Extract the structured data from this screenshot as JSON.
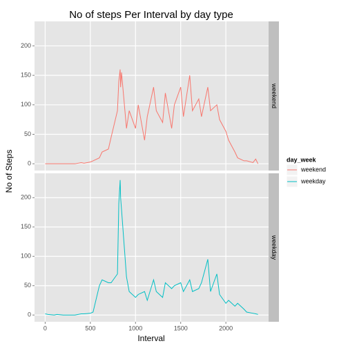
{
  "chart_data": {
    "type": "line",
    "title": "No of steps Per Interval by day type",
    "x_label": "Interval",
    "y_label": "No of Steps",
    "legend_title": "day_week",
    "x": [
      0,
      30,
      100,
      130,
      200,
      230,
      300,
      330,
      400,
      430,
      500,
      530,
      600,
      630,
      700,
      730,
      800,
      815,
      830,
      835,
      845,
      900,
      930,
      1000,
      1030,
      1100,
      1130,
      1200,
      1230,
      1300,
      1330,
      1400,
      1430,
      1500,
      1530,
      1600,
      1630,
      1700,
      1730,
      1800,
      1830,
      1900,
      1930,
      2000,
      2030,
      2100,
      2130,
      2200,
      2230,
      2300,
      2330,
      2355
    ],
    "series": [
      {
        "name": "weekend",
        "color": "#F8766D",
        "values": [
          0,
          0,
          0,
          0,
          0,
          0,
          0,
          0,
          2,
          1,
          3,
          5,
          10,
          20,
          25,
          45,
          90,
          140,
          160,
          130,
          155,
          60,
          90,
          60,
          100,
          40,
          80,
          130,
          90,
          70,
          120,
          60,
          100,
          130,
          80,
          150,
          90,
          110,
          80,
          130,
          90,
          100,
          75,
          55,
          40,
          20,
          10,
          5,
          5,
          2,
          8,
          0
        ]
      },
      {
        "name": "weekday",
        "color": "#00BFC4",
        "values": [
          2,
          1,
          0,
          1,
          0,
          0,
          0,
          0,
          2,
          2,
          3,
          5,
          50,
          60,
          55,
          55,
          70,
          190,
          230,
          200,
          180,
          65,
          40,
          30,
          35,
          40,
          25,
          60,
          40,
          30,
          55,
          45,
          50,
          55,
          40,
          60,
          40,
          45,
          55,
          95,
          40,
          70,
          35,
          20,
          25,
          15,
          20,
          10,
          5,
          3,
          2,
          1
        ]
      }
    ],
    "xlim": [
      -117.75,
      2472.75
    ],
    "ylim": [
      -11.5,
      241.5
    ],
    "xticks": [
      0,
      500,
      1000,
      1500,
      2000
    ],
    "yticks": [
      0,
      50,
      100,
      150,
      200
    ],
    "grid": true,
    "legend_position": "right"
  }
}
